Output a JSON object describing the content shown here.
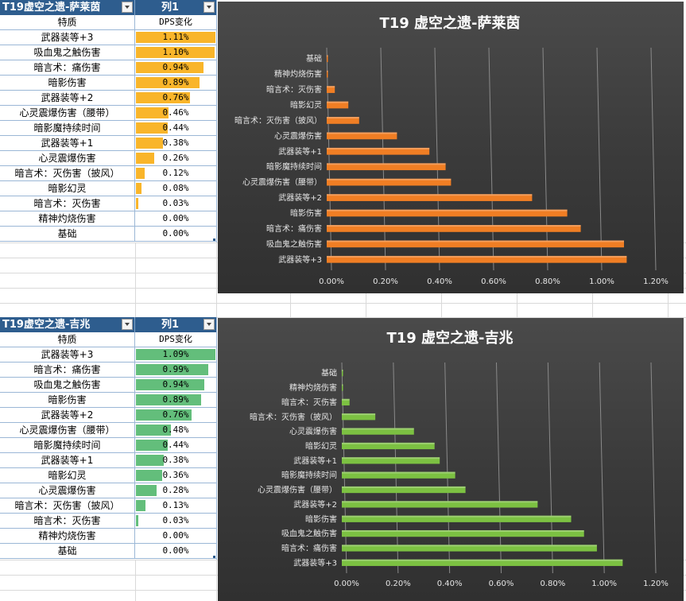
{
  "tables": [
    {
      "header": {
        "col1": "T19虚空之遗-萨莱茵",
        "col2": "列1"
      },
      "subheader": {
        "col1": "特质",
        "col2": "DPS变化"
      },
      "bar_color": "#f9b52a",
      "rows": [
        {
          "label": "武器装等+3",
          "value": 1.11,
          "display": "1.11%"
        },
        {
          "label": "吸血鬼之触伤害",
          "value": 1.1,
          "display": "1.10%"
        },
        {
          "label": "暗言术：痛伤害",
          "value": 0.94,
          "display": "0.94%"
        },
        {
          "label": "暗影伤害",
          "value": 0.89,
          "display": "0.89%"
        },
        {
          "label": "武器装等+2",
          "value": 0.76,
          "display": "0.76%"
        },
        {
          "label": "心灵震爆伤害（腰带）",
          "value": 0.46,
          "display": "0.46%"
        },
        {
          "label": "暗影魔持续时间",
          "value": 0.44,
          "display": "0.44%"
        },
        {
          "label": "武器装等+1",
          "value": 0.38,
          "display": "0.38%"
        },
        {
          "label": "心灵震爆伤害",
          "value": 0.26,
          "display": "0.26%"
        },
        {
          "label": "暗言术：灭伤害（披风）",
          "value": 0.12,
          "display": "0.12%"
        },
        {
          "label": "暗影幻灵",
          "value": 0.08,
          "display": "0.08%"
        },
        {
          "label": "暗言术：灭伤害",
          "value": 0.03,
          "display": "0.03%"
        },
        {
          "label": "精神灼烧伤害",
          "value": 0.0,
          "display": "0.00%"
        },
        {
          "label": "基础",
          "value": 0.0,
          "display": "0.00%"
        }
      ]
    },
    {
      "header": {
        "col1": "T19虚空之遗-吉兆",
        "col2": "列1"
      },
      "subheader": {
        "col1": "特质",
        "col2": "DPS变化"
      },
      "bar_color": "#63be7b",
      "rows": [
        {
          "label": "武器装等+3",
          "value": 1.09,
          "display": "1.09%"
        },
        {
          "label": "暗言术：痛伤害",
          "value": 0.99,
          "display": "0.99%"
        },
        {
          "label": "吸血鬼之触伤害",
          "value": 0.94,
          "display": "0.94%"
        },
        {
          "label": "暗影伤害",
          "value": 0.89,
          "display": "0.89%"
        },
        {
          "label": "武器装等+2",
          "value": 0.76,
          "display": "0.76%"
        },
        {
          "label": "心灵震爆伤害（腰带）",
          "value": 0.48,
          "display": "0.48%"
        },
        {
          "label": "暗影魔持续时间",
          "value": 0.44,
          "display": "0.44%"
        },
        {
          "label": "武器装等+1",
          "value": 0.38,
          "display": "0.38%"
        },
        {
          "label": "暗影幻灵",
          "value": 0.36,
          "display": "0.36%"
        },
        {
          "label": "心灵震爆伤害",
          "value": 0.28,
          "display": "0.28%"
        },
        {
          "label": "暗言术：灭伤害（披风）",
          "value": 0.13,
          "display": "0.13%"
        },
        {
          "label": "暗言术：灭伤害",
          "value": 0.03,
          "display": "0.03%"
        },
        {
          "label": "精神灼烧伤害",
          "value": 0.0,
          "display": "0.00%"
        },
        {
          "label": "基础",
          "value": 0.0,
          "display": "0.00%"
        }
      ]
    }
  ],
  "chart_data": [
    {
      "type": "bar",
      "orientation": "horizontal",
      "title": "T19 虚空之遗-萨莱茵",
      "categories": [
        "基础",
        "精神灼烧伤害",
        "暗言术：灭伤害",
        "暗影幻灵",
        "暗言术：灭伤害（披风）",
        "心灵震爆伤害",
        "武器装等+1",
        "暗影魔持续时间",
        "心灵震爆伤害（腰带）",
        "武器装等+2",
        "暗影伤害",
        "暗言术：痛伤害",
        "吸血鬼之触伤害",
        "武器装等+3"
      ],
      "values": [
        0.0,
        0.0,
        0.03,
        0.08,
        0.12,
        0.26,
        0.38,
        0.44,
        0.46,
        0.76,
        0.89,
        0.94,
        1.1,
        1.11
      ],
      "xlim": [
        0,
        1.2
      ],
      "xticks": [
        "0.00%",
        "0.20%",
        "0.40%",
        "0.60%",
        "0.80%",
        "1.00%",
        "1.20%"
      ],
      "grid": true,
      "legend": "none",
      "bar_color": "#f07e24",
      "background": "#3c3c3c"
    },
    {
      "type": "bar",
      "orientation": "horizontal",
      "title": "T19 虚空之遗-吉兆",
      "categories": [
        "基础",
        "精神灼烧伤害",
        "暗言术：灭伤害",
        "暗言术：灭伤害（披风）",
        "心灵震爆伤害",
        "暗影幻灵",
        "武器装等+1",
        "暗影魔持续时间",
        "心灵震爆伤害（腰带）",
        "武器装等+2",
        "暗影伤害",
        "吸血鬼之触伤害",
        "暗言术：痛伤害",
        "武器装等+3"
      ],
      "values": [
        0.0,
        0.0,
        0.03,
        0.13,
        0.28,
        0.36,
        0.38,
        0.44,
        0.48,
        0.76,
        0.89,
        0.94,
        0.99,
        1.09
      ],
      "xlim": [
        0,
        1.2
      ],
      "xticks": [
        "0.00%",
        "0.20%",
        "0.40%",
        "0.60%",
        "0.80%",
        "1.00%",
        "1.20%"
      ],
      "grid": true,
      "legend": "none",
      "bar_color": "#7cc142",
      "background": "#3c3c3c"
    }
  ]
}
